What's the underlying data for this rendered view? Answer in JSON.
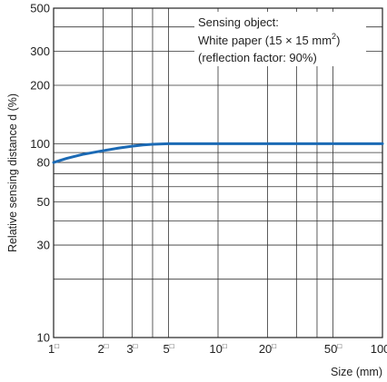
{
  "chart_data": {
    "type": "line",
    "title": "",
    "xlabel": "Size (mm)",
    "ylabel": "Relative sensing distance d (%)",
    "x_scale": "log",
    "y_scale": "log",
    "xlim": [
      1,
      100
    ],
    "ylim": [
      10,
      500
    ],
    "x_ticks": [
      {
        "value": 1,
        "label": "1"
      },
      {
        "value": 2,
        "label": "2"
      },
      {
        "value": 3,
        "label": "3"
      },
      {
        "value": 5,
        "label": "5"
      },
      {
        "value": 10,
        "label": "10"
      },
      {
        "value": 20,
        "label": "20"
      },
      {
        "value": 50,
        "label": "50"
      },
      {
        "value": 100,
        "label": "100"
      }
    ],
    "x_tick_suffix": "□",
    "y_ticks": [
      {
        "value": 10,
        "label": "10"
      },
      {
        "value": 30,
        "label": "30"
      },
      {
        "value": 50,
        "label": "50"
      },
      {
        "value": 80,
        "label": "80"
      },
      {
        "value": 100,
        "label": "100"
      },
      {
        "value": 200,
        "label": "200"
      },
      {
        "value": 300,
        "label": "300"
      },
      {
        "value": 500,
        "label": "500"
      }
    ],
    "x_grid": [
      1,
      2,
      3,
      4,
      5,
      10,
      20,
      30,
      40,
      50,
      100
    ],
    "y_grid": [
      10,
      20,
      30,
      40,
      50,
      60,
      70,
      80,
      90,
      100,
      200,
      300,
      400,
      500
    ],
    "grid": true,
    "series": [
      {
        "color": "#1b6ab5",
        "x": [
          1,
          1.2,
          1.5,
          2,
          2.5,
          3,
          3.5,
          4,
          5,
          7,
          10,
          20,
          50,
          100
        ],
        "y": [
          80,
          84,
          88,
          92,
          95,
          97,
          98.5,
          99.3,
          100,
          100,
          100,
          100,
          100,
          100
        ]
      }
    ],
    "annotation": {
      "line1": "Sensing object:",
      "line2_prefix": "White paper (15 × 15 mm",
      "line2_sup": "2",
      "line2_suffix": ")",
      "line3": "(reflection factor: 90%)"
    }
  }
}
